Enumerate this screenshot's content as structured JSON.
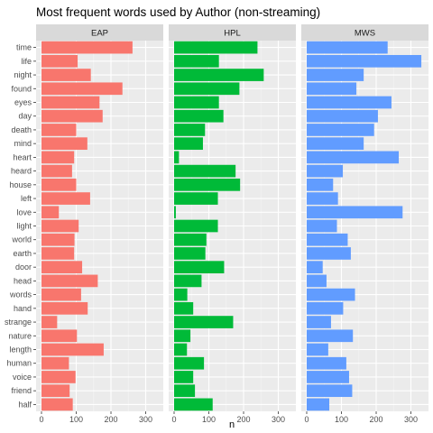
{
  "chart_data": {
    "type": "bar",
    "orientation": "horizontal",
    "title": "Most frequent words used by Author (non-streaming)",
    "xlabel": "n",
    "ylabel": "",
    "xlim": [
      0,
      335
    ],
    "xticks": [
      0,
      100,
      200,
      300
    ],
    "grid": true,
    "legend": "none",
    "categories": [
      "time",
      "life",
      "night",
      "found",
      "eyes",
      "day",
      "death",
      "mind",
      "heart",
      "heard",
      "house",
      "left",
      "love",
      "light",
      "world",
      "earth",
      "door",
      "head",
      "words",
      "hand",
      "strange",
      "nature",
      "length",
      "human",
      "voice",
      "friend",
      "half"
    ],
    "facets": [
      {
        "name": "EAP",
        "color": "#F8766D",
        "values": [
          262,
          104,
          142,
          233,
          167,
          176,
          100,
          132,
          94,
          88,
          100,
          140,
          50,
          107,
          95,
          94,
          117,
          162,
          114,
          133,
          45,
          102,
          179,
          79,
          98,
          81,
          90
        ]
      },
      {
        "name": "HPL",
        "color": "#00BA38",
        "values": [
          240,
          129,
          258,
          188,
          129,
          142,
          89,
          83,
          14,
          177,
          190,
          126,
          5,
          126,
          93,
          90,
          144,
          79,
          38,
          55,
          170,
          47,
          37,
          86,
          55,
          60,
          111
        ]
      },
      {
        "name": "MWS",
        "color": "#619CFF",
        "values": [
          233,
          330,
          164,
          143,
          244,
          205,
          194,
          164,
          265,
          104,
          76,
          90,
          276,
          87,
          118,
          127,
          46,
          57,
          139,
          105,
          70,
          133,
          62,
          114,
          122,
          131,
          65
        ]
      }
    ],
    "colors": {
      "panel_background": "#EBEBEB",
      "grid_major": "#FFFFFF",
      "grid_minor": "#F5F5F5",
      "strip_background": "#D9D9D9"
    }
  }
}
